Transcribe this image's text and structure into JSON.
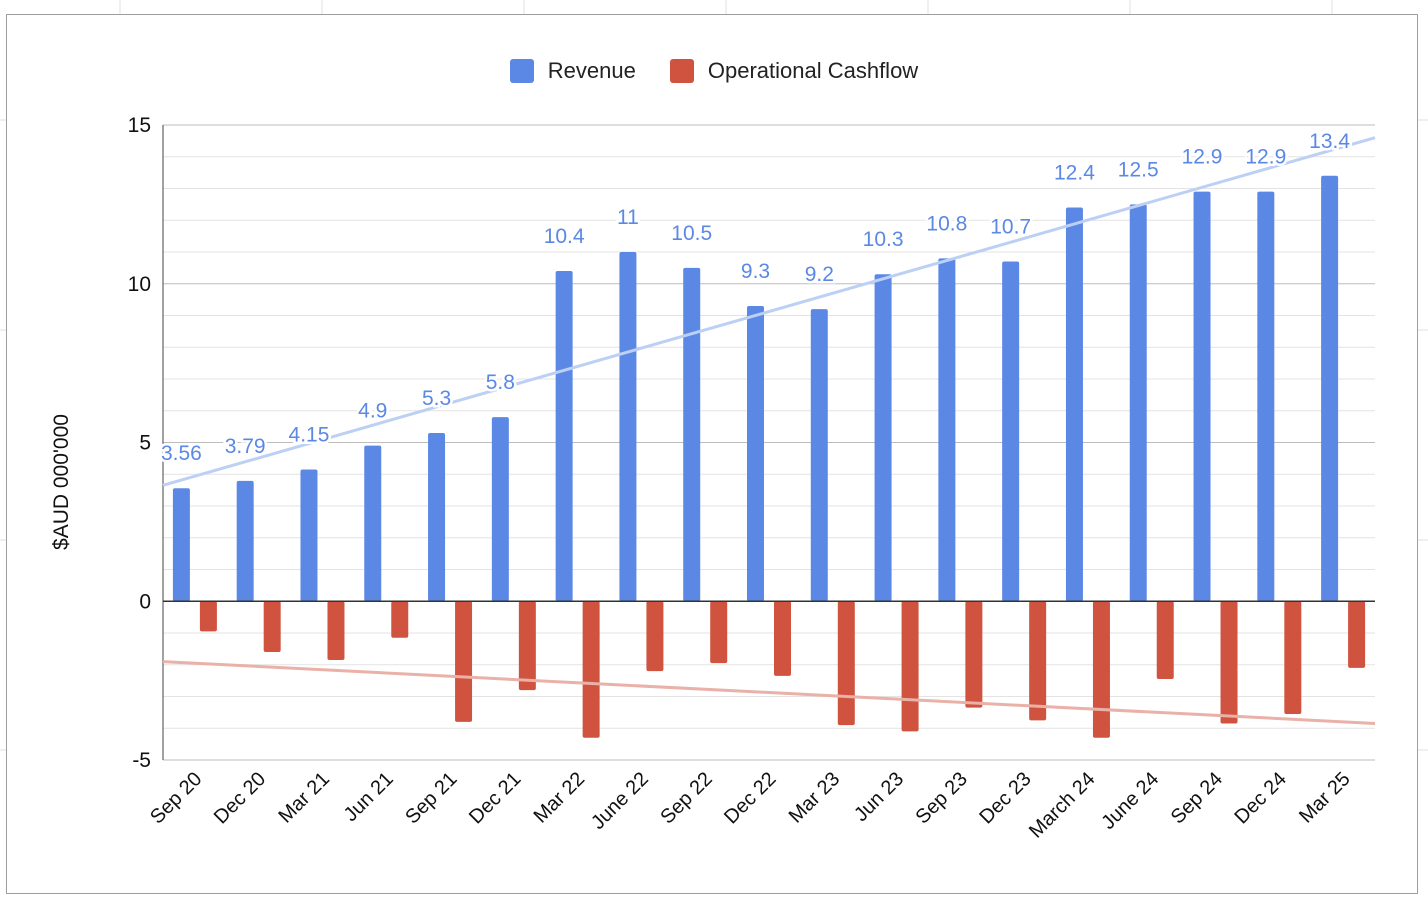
{
  "chart_data": {
    "type": "bar",
    "title": "",
    "xlabel": "",
    "ylabel": "$AUD 000'000",
    "ylim": [
      -5,
      15
    ],
    "yticks": [
      -5,
      0,
      5,
      10,
      15
    ],
    "categories": [
      "Sep 20",
      "Dec 20",
      "Mar 21",
      "Jun 21",
      "Sep 21",
      "Dec 21",
      "Mar 22",
      "June 22",
      "Sep 22",
      "Dec 22",
      "Mar 23",
      "Jun 23",
      "Sep 23",
      "Dec 23",
      "March 24",
      "June 24",
      "Sep 24",
      "Dec 24",
      "Mar 25"
    ],
    "series": [
      {
        "name": "Revenue",
        "color": "#5b88e5",
        "values": [
          3.56,
          3.79,
          4.15,
          4.9,
          5.3,
          5.8,
          10.4,
          11,
          10.5,
          9.3,
          9.2,
          10.3,
          10.8,
          10.7,
          12.4,
          12.5,
          12.9,
          12.9,
          13.4
        ],
        "labels": [
          "3.56",
          "3.79",
          "4.15",
          "4.9",
          "5.3",
          "5.8",
          "10.4",
          "11",
          "10.5",
          "9.3",
          "9.2",
          "10.3",
          "10.8",
          "10.7",
          "12.4",
          "12.5",
          "12.9",
          "12.9",
          "13.4"
        ],
        "trendline": {
          "color": "#bcd0f5",
          "start": 3.65,
          "end": 14.6
        }
      },
      {
        "name": "Operational Cashflow",
        "color": "#d0533f",
        "values": [
          -0.95,
          -1.6,
          -1.85,
          -1.15,
          -3.8,
          -2.8,
          -4.3,
          -2.2,
          -1.95,
          -2.35,
          -3.9,
          -4.1,
          -3.35,
          -3.75,
          -4.3,
          -2.45,
          -3.85,
          -3.55,
          -2.1
        ],
        "trendline": {
          "color": "#e9b1a8",
          "start": -1.9,
          "end": -3.85
        }
      }
    ],
    "legend_position": "top-center",
    "grid": true
  }
}
